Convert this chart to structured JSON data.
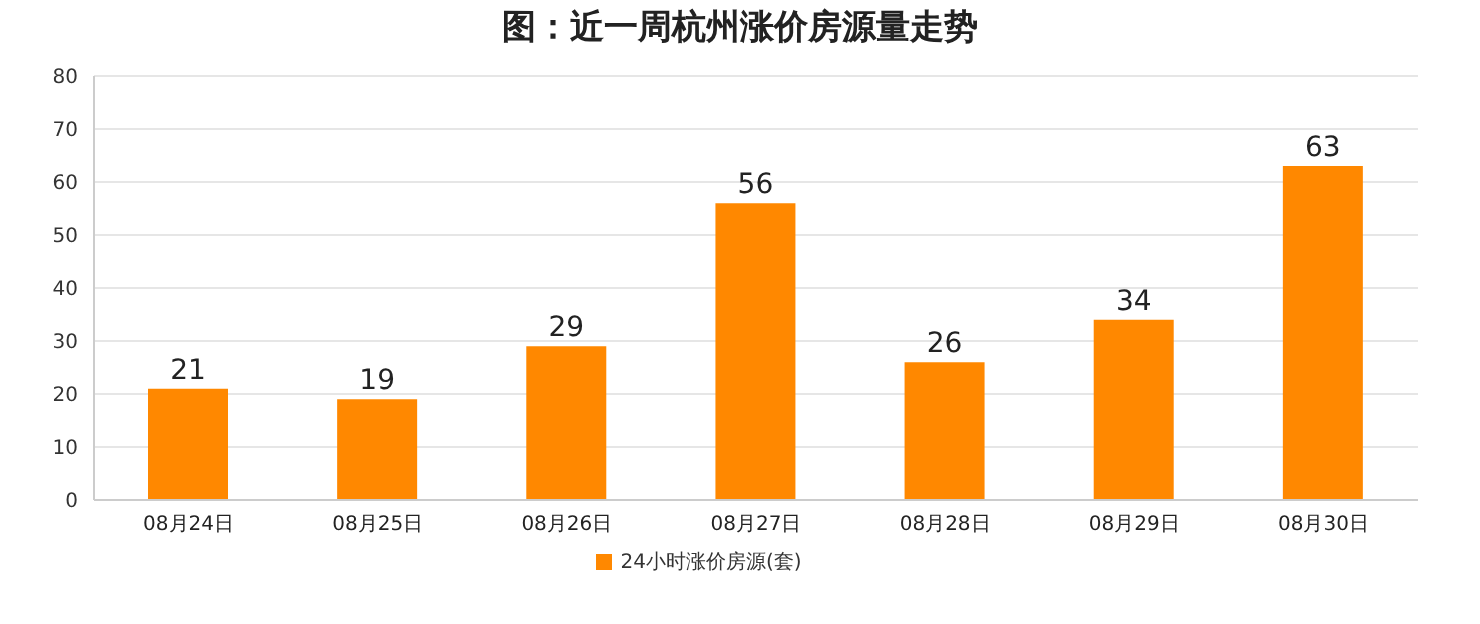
{
  "chart_data": {
    "type": "bar",
    "title": "图：近一周杭州涨价房源量走势",
    "categories": [
      "08月24日",
      "08月25日",
      "08月26日",
      "08月27日",
      "08月28日",
      "08月29日",
      "08月30日"
    ],
    "series": [
      {
        "name": "24小时涨价房源(套)",
        "color": "#ff8800",
        "values": [
          21,
          19,
          29,
          56,
          26,
          34,
          63
        ]
      }
    ],
    "ylim": [
      0,
      80
    ],
    "yticks": [
      0,
      10,
      20,
      30,
      40,
      50,
      60,
      70,
      80
    ],
    "grid": "y",
    "legend": "bottom",
    "data_labels": true
  }
}
